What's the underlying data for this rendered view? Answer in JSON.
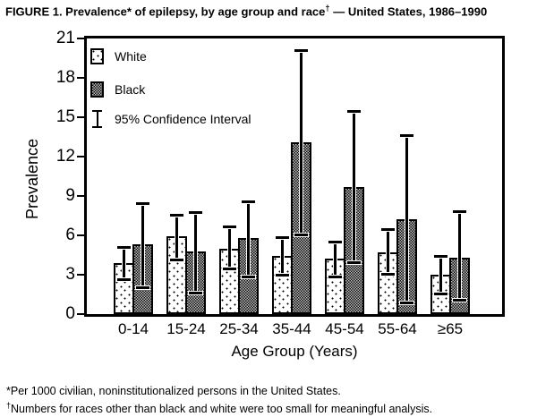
{
  "title": {
    "part1": "FIGURE 1. Prevalence* of epilepsy, by age group and race",
    "sup": "†",
    "part2": " — United States, 1986–1990"
  },
  "chart_data": {
    "type": "bar",
    "title": "FIGURE 1. Prevalence* of epilepsy, by age group and race† — United States, 1986–1990",
    "xlabel": "Age Group (Years)",
    "ylabel": "Prevalence",
    "ylim": [
      0,
      21
    ],
    "yticks": [
      0,
      3,
      6,
      9,
      12,
      15,
      18,
      21
    ],
    "grid": false,
    "legend_position": "top-left",
    "categories": [
      "0-14",
      "15-24",
      "25-34",
      "35-44",
      "45-54",
      "55-64",
      "≥65"
    ],
    "series": [
      {
        "name": "White",
        "values": [
          3.9,
          5.9,
          5.0,
          4.4,
          4.2,
          4.7,
          3.0
        ],
        "ci_low": [
          2.6,
          4.1,
          3.4,
          2.9,
          2.8,
          3.0,
          1.5
        ],
        "ci_high": [
          5.1,
          7.6,
          6.7,
          5.8,
          5.5,
          6.5,
          4.4
        ]
      },
      {
        "name": "Black",
        "values": [
          5.3,
          4.8,
          5.8,
          13.1,
          9.7,
          7.2,
          4.3
        ],
        "ci_low": [
          2.0,
          1.6,
          2.8,
          6.0,
          3.9,
          0.8,
          1.0
        ],
        "ci_high": [
          8.5,
          7.8,
          8.6,
          20.1,
          15.5,
          13.6,
          7.8
        ]
      }
    ],
    "legend": [
      {
        "swatch": "white-pattern",
        "label": "White"
      },
      {
        "swatch": "black-pattern",
        "label": "Black"
      },
      {
        "swatch": "ci-symbol",
        "label": "95% Confidence Interval"
      }
    ]
  },
  "footnotes": [
    {
      "marker": "*",
      "text": "Per 1000 civilian, noninstitutionalized persons in the United States."
    },
    {
      "marker": "†",
      "text": "Numbers for races other than black and white were too small for meaningful analysis."
    }
  ],
  "colors": {
    "foreground": "#000000",
    "background": "#ffffff"
  }
}
